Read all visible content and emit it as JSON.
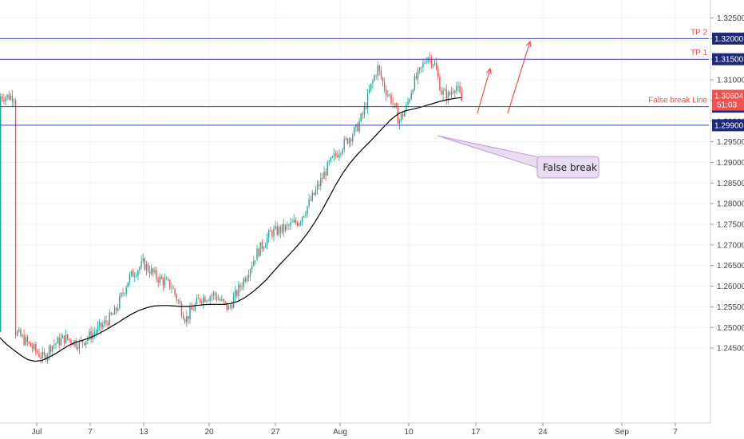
{
  "chart_data": {
    "type": "candlestick",
    "instrument_price_scale": "right",
    "colors": {
      "up": "#26a69a",
      "down": "#ef5350",
      "moving_average": "#000000",
      "level_line": "#3f3fbf",
      "annotation_red": "#f05350",
      "last_price_tag": "#ef5350",
      "level_tag": "#1e2a78",
      "callout_fill": "#e8dcf0",
      "callout_border": "#c39bd3"
    },
    "x_tick_labels": [
      "Jul",
      "7",
      "13",
      "20",
      "27",
      "Aug",
      "10",
      "17",
      "24",
      "Sep",
      "7"
    ],
    "y_tick_labels": [
      "1.24500",
      "1.25000",
      "1.25500",
      "1.26000",
      "1.26500",
      "1.27000",
      "1.27500",
      "1.28000",
      "1.28500",
      "1.29000",
      "1.29500",
      "1.30000",
      "1.30500",
      "1.31000",
      "1.31500",
      "1.32000",
      "1.32500"
    ],
    "y_tick_values": [
      1.245,
      1.25,
      1.255,
      1.26,
      1.265,
      1.27,
      1.275,
      1.28,
      1.285,
      1.29,
      1.295,
      1.3,
      1.305,
      1.31,
      1.315,
      1.32,
      1.325
    ],
    "ylim": [
      1.2405,
      1.3285
    ],
    "horizontal_lines": [
      {
        "label": "TP 2",
        "value": 1.32,
        "tag": "1.32000"
      },
      {
        "label": "TP 1",
        "value": 1.315,
        "tag": "1.31500"
      },
      {
        "label": "False break Line",
        "value": 1.3035,
        "tag": "1.30350"
      },
      {
        "label": "",
        "value": 1.299,
        "tag": "1.29900"
      }
    ],
    "last_price": {
      "tag": "1.30604",
      "countdown": "51:03",
      "value": 1.30604
    },
    "annotations": {
      "callout_text": "False break",
      "arrows": [
        {
          "from": [
            1.3055,
            1.3105
          ],
          "to": [
            1.3145,
            1.3195
          ]
        }
      ]
    },
    "moving_average_series": [
      1.2475,
      1.2458,
      1.2445,
      1.2432,
      1.2422,
      1.2418,
      1.242,
      1.2428,
      1.2437,
      1.2448,
      1.2458,
      1.2465,
      1.247,
      1.2476,
      1.2484,
      1.2493,
      1.2503,
      1.2513,
      1.2524,
      1.2534,
      1.2542,
      1.2548,
      1.2552,
      1.2553,
      1.2553,
      1.2552,
      1.2551,
      1.2551,
      1.2553,
      1.2555,
      1.2556,
      1.2556,
      1.2556,
      1.2558,
      1.2563,
      1.2572,
      1.2584,
      1.2598,
      1.2614,
      1.2633,
      1.2652,
      1.267,
      1.2688,
      1.2707,
      1.2729,
      1.2754,
      1.2782,
      1.2813,
      1.2845,
      1.2873,
      1.2897,
      1.2917,
      1.2935,
      1.2952,
      1.297,
      1.2988,
      1.3005,
      1.3018,
      1.3025,
      1.3029,
      1.3033,
      1.3038,
      1.3043,
      1.3048,
      1.3052,
      1.3055,
      1.3057
    ]
  }
}
